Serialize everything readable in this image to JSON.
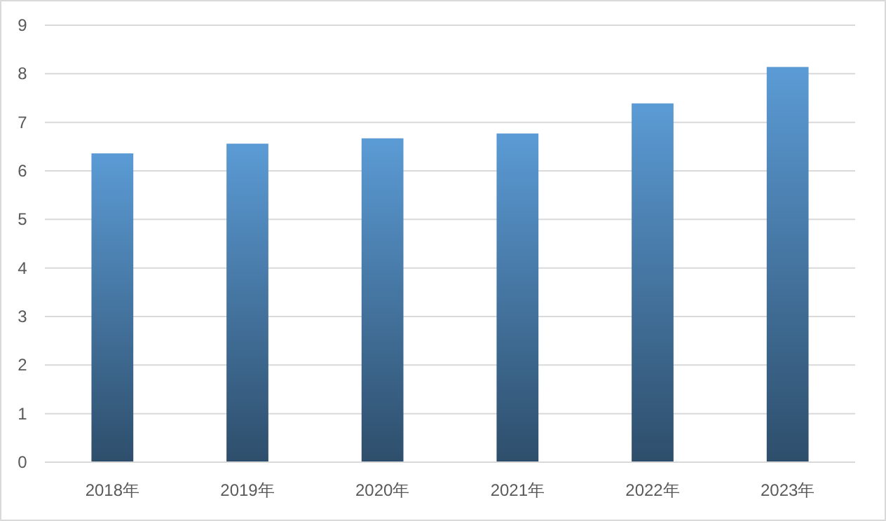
{
  "chart_data": {
    "type": "bar",
    "categories": [
      "2018年",
      "2019年",
      "2020年",
      "2021年",
      "2022年",
      "2023年"
    ],
    "values": [
      6.36,
      6.56,
      6.67,
      6.77,
      7.39,
      8.14
    ],
    "color": "#5b9bd5",
    "ylim": [
      0,
      9
    ],
    "yticks": [
      0,
      1,
      2,
      3,
      4,
      5,
      6,
      7,
      8,
      9
    ],
    "grid": "y"
  }
}
